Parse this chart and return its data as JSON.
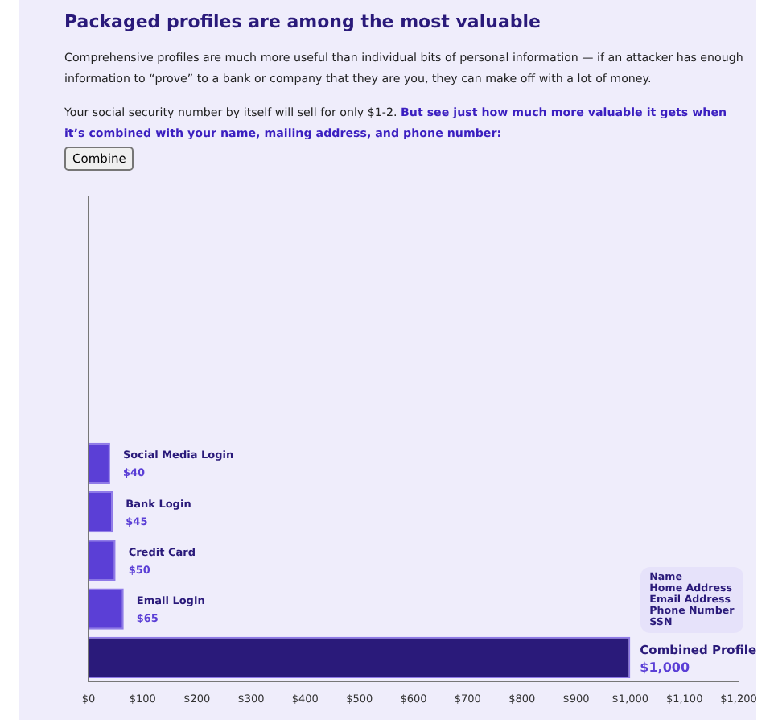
{
  "chart_data": {
    "type": "bar",
    "orientation": "horizontal",
    "title": "Packaged profiles are among the most valuable",
    "subtitle": "Comprehensive profiles are much more useful than individual bits of personal information — if an attacker has enough information to “prove” to a bank or company that they are you, they can make off with a lot of money.",
    "annotations": [
      "Your social security number by itself will sell for only $1-2.",
      "But see just how much more valuable it gets when it’s combined with your name, mailing address, and phone number:",
      "Combine",
      {
        "text": "Name\nHome Address\nEmail Address\nPhone Number\nSSN",
        "x": 1000,
        "y": "Combined Profile"
      }
    ],
    "categories": [
      null,
      null,
      null,
      null,
      null,
      "Social Media Login",
      "Bank Login",
      "Credit Card",
      "Email Login",
      "Combined Profile"
    ],
    "values": [
      null,
      null,
      null,
      null,
      null,
      40,
      45,
      50,
      65,
      1000
    ],
    "value_labels": [
      null,
      null,
      null,
      null,
      null,
      "$40",
      "$45",
      "$50",
      "$65",
      "$1,000"
    ],
    "colors": [
      "#5b3fd6",
      "#5b3fd6",
      "#5b3fd6",
      "#5b3fd6",
      "#2a1a7a",
      "#5b3fd6",
      "#5b3fd6",
      "#5b3fd6",
      "#5b3fd6",
      "#2a1a7a"
    ],
    "xlim": [
      0,
      1200
    ],
    "xticks": [
      {
        "value": 0,
        "label": "$0"
      },
      {
        "value": 100,
        "label": "$100"
      },
      {
        "value": 200,
        "label": "$200"
      },
      {
        "value": 300,
        "label": "$300"
      },
      {
        "value": 400,
        "label": "$400"
      },
      {
        "value": 500,
        "label": "$500"
      },
      {
        "value": 600,
        "label": "$600"
      },
      {
        "value": 700,
        "label": "$700"
      },
      {
        "value": 800,
        "label": "$800"
      },
      {
        "value": 900,
        "label": "$900"
      },
      {
        "value": 1000,
        "label": "$1,000"
      },
      {
        "value": 1100,
        "label": "$1,100"
      },
      {
        "value": 1200,
        "label": "$1,200"
      }
    ],
    "tick_labels": "x",
    "grid": false,
    "legend": false
  }
}
